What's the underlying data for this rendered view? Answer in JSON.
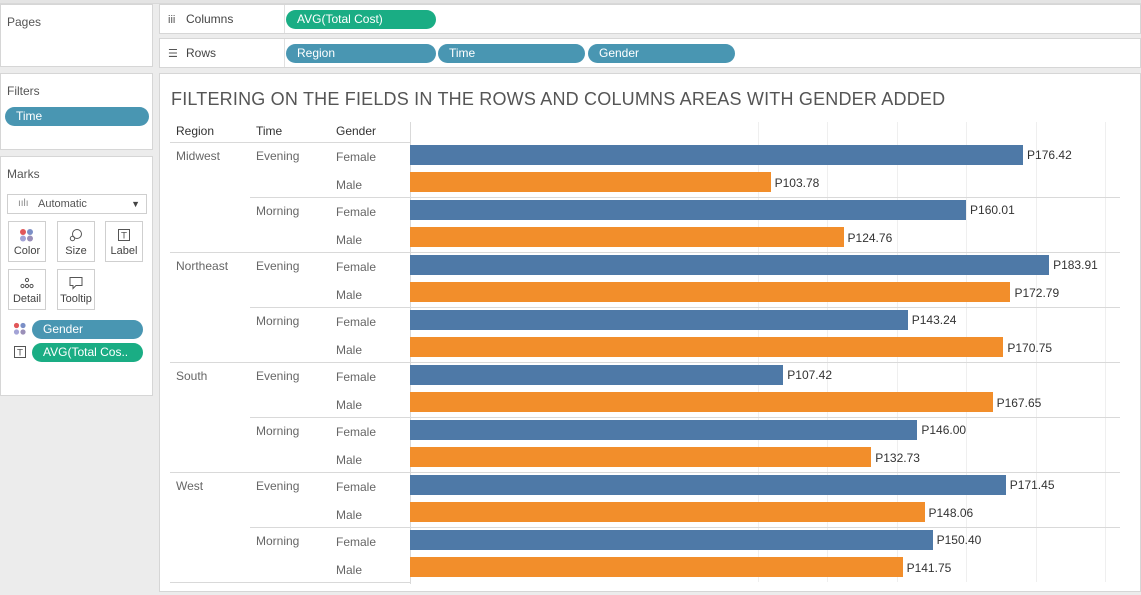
{
  "sidebar": {
    "pages_title": "Pages",
    "filters_title": "Filters",
    "filter_pills": [
      "Time"
    ],
    "marks": {
      "title": "Marks",
      "mark_type": "Automatic",
      "buttons": [
        {
          "label": "Color",
          "icon": "color-dots-icon"
        },
        {
          "label": "Size",
          "icon": "size-icon"
        },
        {
          "label": "Label",
          "icon": "label-icon"
        },
        {
          "label": "Detail",
          "icon": "detail-icon"
        },
        {
          "label": "Tooltip",
          "icon": "tooltip-icon"
        }
      ],
      "fields": [
        {
          "icon": "color-dots-icon",
          "label": "Gender",
          "pill_color": "#4996b2"
        },
        {
          "icon": "label-icon",
          "label": "AVG(Total Cos..",
          "pill_color": "#1aad84"
        }
      ]
    }
  },
  "shelves": {
    "columns": {
      "label": "Columns",
      "pills": [
        "AVG(Total Cost)"
      ]
    },
    "rows": {
      "label": "Rows",
      "pills": [
        "Region",
        "Time",
        "Gender"
      ]
    }
  },
  "view": {
    "title": "FILTERING ON THE FIELDS IN THE ROWS AND COLUMNS AREAS WITH GENDER ADDED",
    "headers": [
      "Region",
      "Time",
      "Gender"
    ]
  },
  "colors": {
    "female": "#4e79a7",
    "male": "#f28e2b",
    "green_pill": "#1aad84",
    "blue_pill": "#4996b2"
  },
  "chart_data": {
    "type": "bar",
    "orientation": "horizontal",
    "measure": "AVG(Total Cost)",
    "xlim": [
      0,
      200
    ],
    "rows": [
      {
        "region": "Midwest",
        "time": "Evening",
        "gender": "Female",
        "value": 176.42,
        "label": "P176.42"
      },
      {
        "region": "Midwest",
        "time": "Evening",
        "gender": "Male",
        "value": 103.78,
        "label": "P103.78"
      },
      {
        "region": "Midwest",
        "time": "Morning",
        "gender": "Female",
        "value": 160.01,
        "label": "P160.01"
      },
      {
        "region": "Midwest",
        "time": "Morning",
        "gender": "Male",
        "value": 124.76,
        "label": "P124.76"
      },
      {
        "region": "Northeast",
        "time": "Evening",
        "gender": "Female",
        "value": 183.91,
        "label": "P183.91"
      },
      {
        "region": "Northeast",
        "time": "Evening",
        "gender": "Male",
        "value": 172.79,
        "label": "P172.79"
      },
      {
        "region": "Northeast",
        "time": "Morning",
        "gender": "Female",
        "value": 143.24,
        "label": "P143.24"
      },
      {
        "region": "Northeast",
        "time": "Morning",
        "gender": "Male",
        "value": 170.75,
        "label": "P170.75"
      },
      {
        "region": "South",
        "time": "Evening",
        "gender": "Female",
        "value": 107.42,
        "label": "P107.42"
      },
      {
        "region": "South",
        "time": "Evening",
        "gender": "Male",
        "value": 167.65,
        "label": "P167.65"
      },
      {
        "region": "South",
        "time": "Morning",
        "gender": "Female",
        "value": 146.0,
        "label": "P146.00"
      },
      {
        "region": "South",
        "time": "Morning",
        "gender": "Male",
        "value": 132.73,
        "label": "P132.73"
      },
      {
        "region": "West",
        "time": "Evening",
        "gender": "Female",
        "value": 171.45,
        "label": "P171.45"
      },
      {
        "region": "West",
        "time": "Evening",
        "gender": "Male",
        "value": 148.06,
        "label": "P148.06"
      },
      {
        "region": "West",
        "time": "Morning",
        "gender": "Female",
        "value": 150.4,
        "label": "P150.40"
      },
      {
        "region": "West",
        "time": "Morning",
        "gender": "Male",
        "value": 141.75,
        "label": "P141.75"
      }
    ]
  }
}
